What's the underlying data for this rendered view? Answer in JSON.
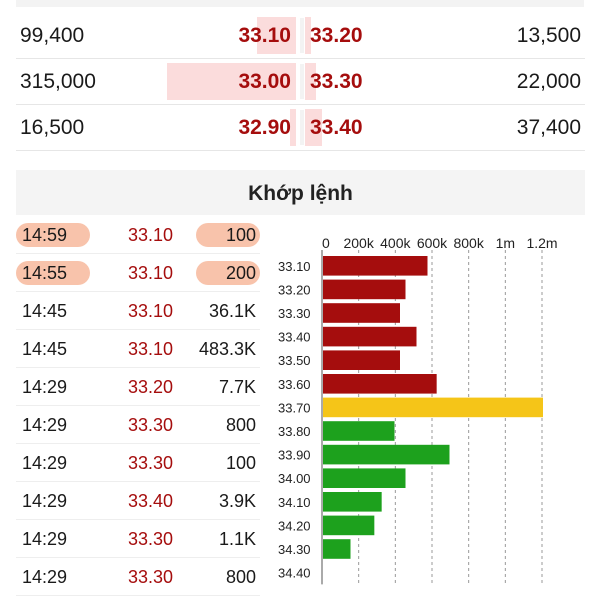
{
  "order_book": {
    "rows": [
      {
        "bid_volume": "99,400",
        "bid_price": "33.10",
        "ask_price": "33.20",
        "ask_volume": "13,500",
        "bid_bar_fraction": 0.14,
        "ask_bar_fraction": 0.02
      },
      {
        "bid_volume": "315,000",
        "bid_price": "33.00",
        "ask_price": "33.30",
        "ask_volume": "22,000",
        "bid_bar_fraction": 0.46,
        "ask_bar_fraction": 0.04
      },
      {
        "bid_volume": "16,500",
        "bid_price": "32.90",
        "ask_price": "33.40",
        "ask_volume": "37,400",
        "bid_bar_fraction": 0.02,
        "ask_bar_fraction": 0.06
      }
    ]
  },
  "matched": {
    "title": "Khớp lệnh",
    "trades": [
      {
        "time": "14:59",
        "price": "33.10",
        "volume": "100",
        "highlighted": true
      },
      {
        "time": "14:55",
        "price": "33.10",
        "volume": "200",
        "highlighted": true
      },
      {
        "time": "14:45",
        "price": "33.10",
        "volume": "36.1K",
        "highlighted": false
      },
      {
        "time": "14:45",
        "price": "33.10",
        "volume": "483.3K",
        "highlighted": false
      },
      {
        "time": "14:29",
        "price": "33.20",
        "volume": "7.7K",
        "highlighted": false
      },
      {
        "time": "14:29",
        "price": "33.30",
        "volume": "800",
        "highlighted": false
      },
      {
        "time": "14:29",
        "price": "33.30",
        "volume": "100",
        "highlighted": false
      },
      {
        "time": "14:29",
        "price": "33.40",
        "volume": "3.9K",
        "highlighted": false
      },
      {
        "time": "14:29",
        "price": "33.30",
        "volume": "1.1K",
        "highlighted": false
      },
      {
        "time": "14:29",
        "price": "33.30",
        "volume": "800",
        "highlighted": false
      }
    ]
  },
  "chart_data": {
    "type": "bar",
    "orientation": "horizontal",
    "categories": [
      "33.10",
      "33.20",
      "33.30",
      "33.40",
      "33.50",
      "33.60",
      "33.70",
      "33.80",
      "33.90",
      "34.00",
      "34.10",
      "34.20",
      "34.30",
      "34.40"
    ],
    "values": [
      570000,
      450000,
      420000,
      510000,
      420000,
      620000,
      1200000,
      390000,
      690000,
      450000,
      320000,
      280000,
      150000,
      0
    ],
    "bar_colors": [
      "#a50d0d",
      "#a50d0d",
      "#a50d0d",
      "#a50d0d",
      "#a50d0d",
      "#a50d0d",
      "#f5c518",
      "#1da11d",
      "#1da11d",
      "#1da11d",
      "#1da11d",
      "#1da11d",
      "#1da11d",
      "#1da11d"
    ],
    "xlim": [
      0,
      1200000
    ],
    "x_tick_values": [
      0,
      200000,
      400000,
      600000,
      800000,
      1000000,
      1200000
    ],
    "x_tick_labels": [
      "0",
      "200k",
      "400k",
      "600k",
      "800k",
      "1m",
      "1.2m"
    ],
    "grid": true,
    "title": "",
    "xlabel": "",
    "ylabel": ""
  }
}
